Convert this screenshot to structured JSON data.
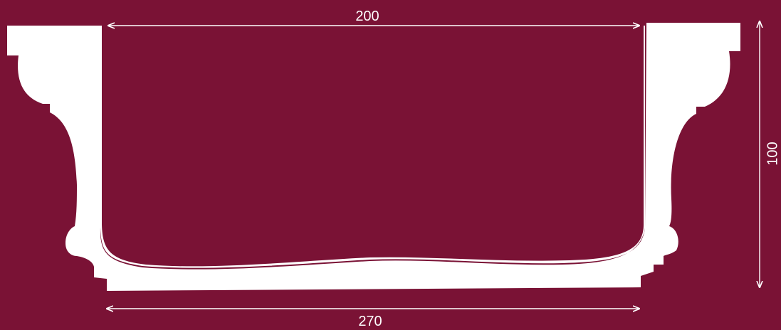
{
  "colors": {
    "background": "#7a1235",
    "profile": "#ffffff",
    "dimension_lines": "#ffffff"
  },
  "dimensions": {
    "top_width": "200",
    "bottom_width": "270",
    "height": "100"
  }
}
